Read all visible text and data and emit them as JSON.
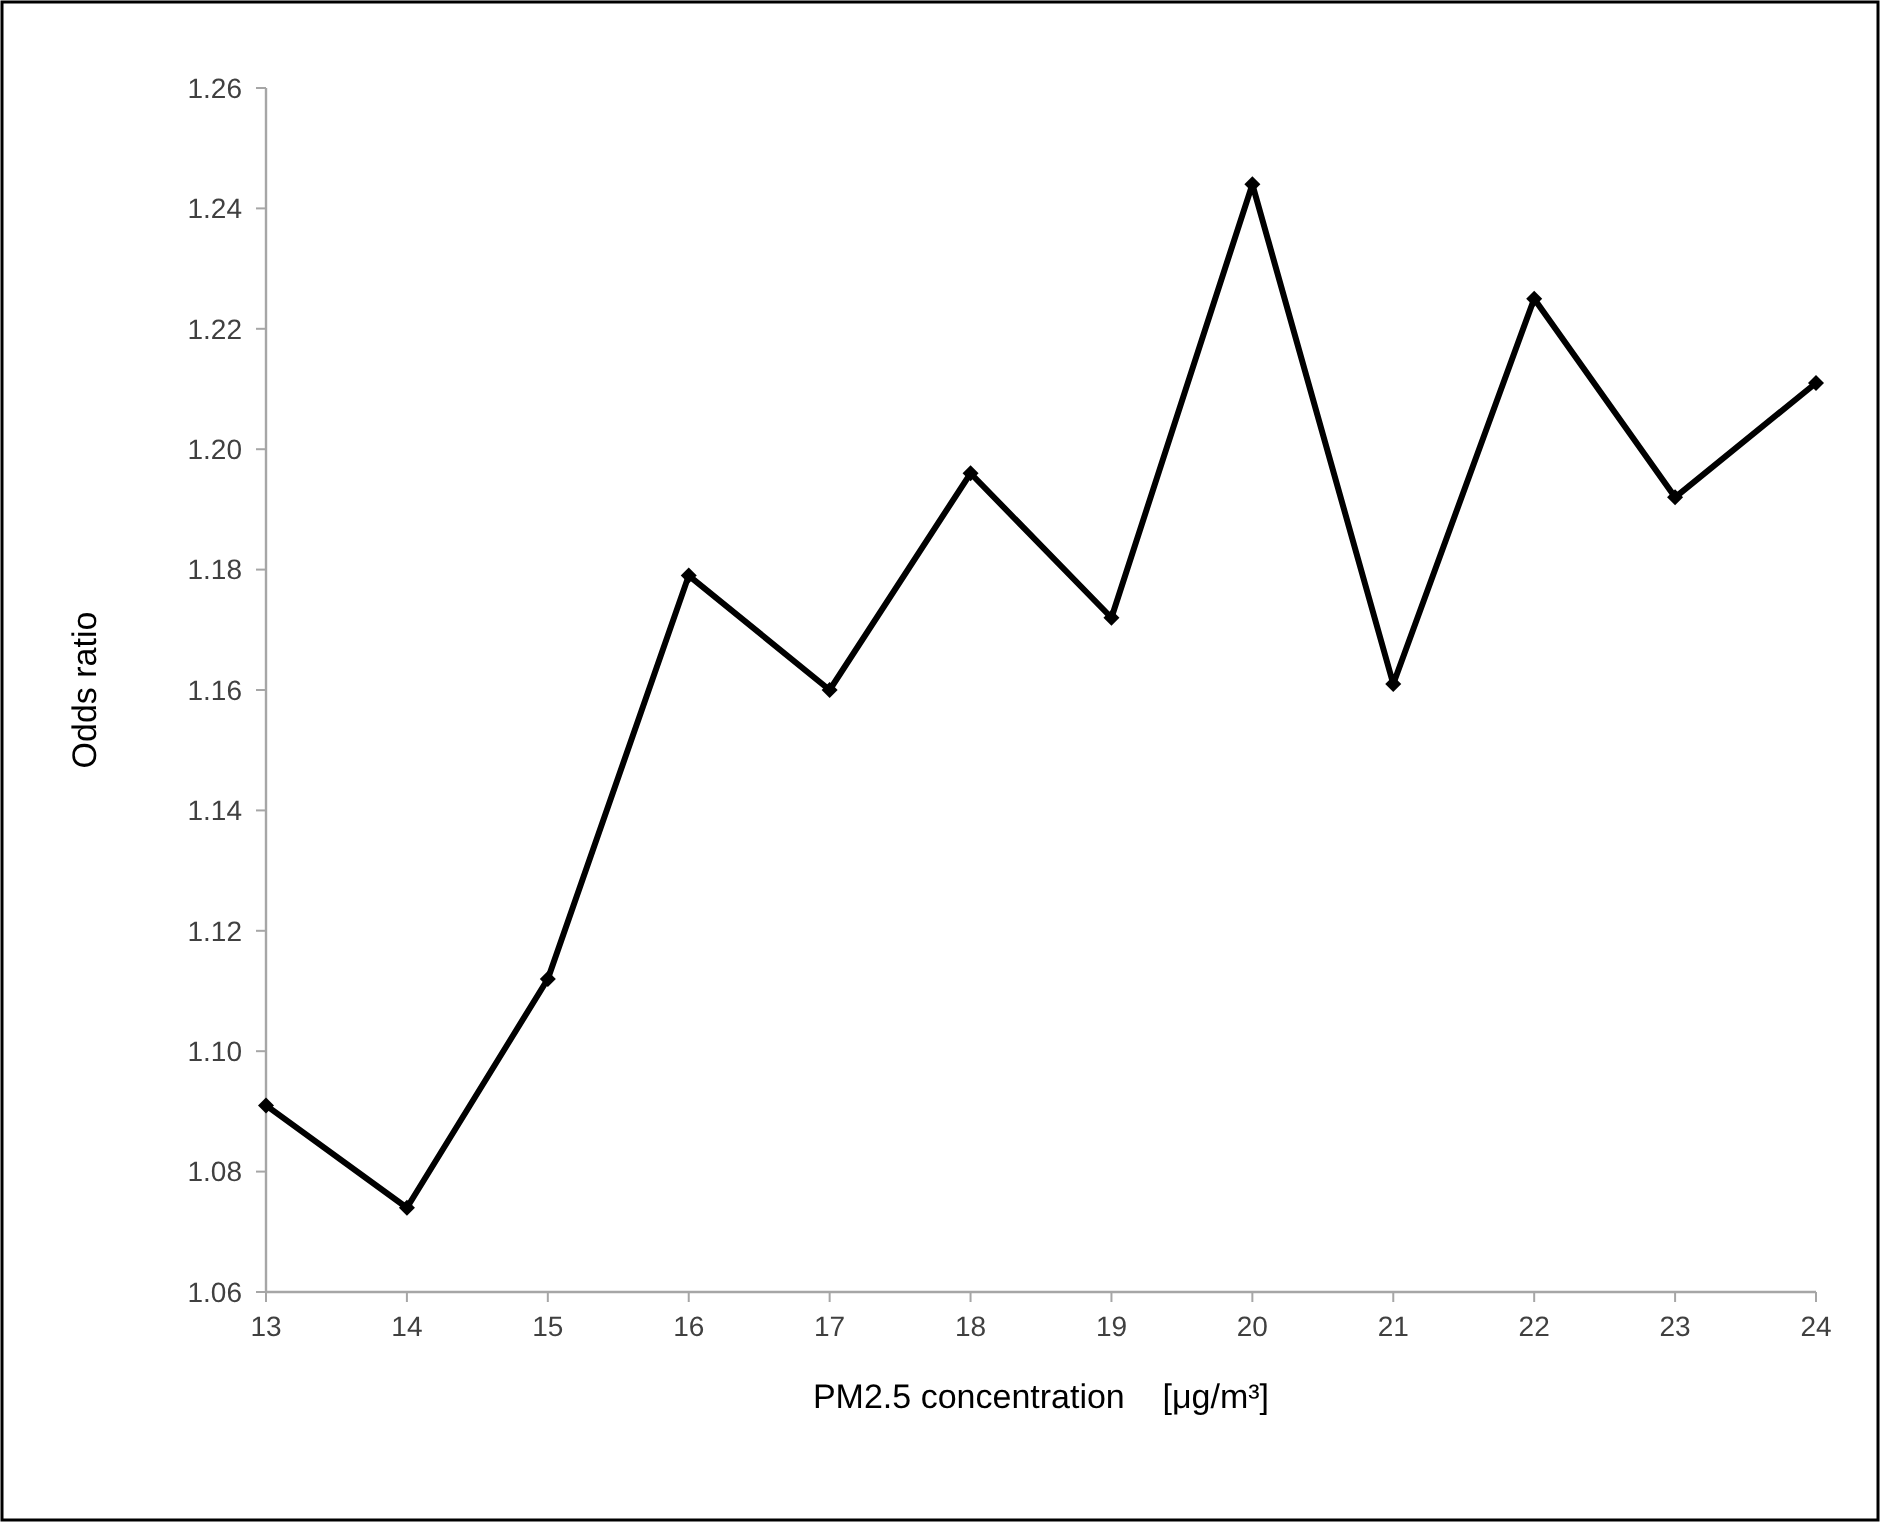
{
  "chart_data": {
    "type": "line",
    "xlabel": "PM2.5 concentration    [μg/m³]",
    "ylabel": "Odds ratio",
    "x": [
      13,
      14,
      15,
      16,
      17,
      18,
      19,
      20,
      21,
      22,
      23,
      24
    ],
    "series": [
      {
        "color": "#000000",
        "values": [
          1.091,
          1.074,
          1.112,
          1.179,
          1.16,
          1.196,
          1.172,
          1.244,
          1.161,
          1.225,
          1.192,
          1.211
        ]
      }
    ],
    "xlim": [
      13,
      24
    ],
    "xticks": [
      13,
      14,
      15,
      16,
      17,
      18,
      19,
      20,
      21,
      22,
      23,
      24
    ],
    "ylim": [
      1.06,
      1.26
    ],
    "yticks": [
      1.06,
      1.08,
      {
        "value": 1.1,
        "label": "1.10"
      },
      1.12,
      1.14,
      1.16,
      1.18,
      {
        "value": 1.2,
        "label": "1.20"
      },
      1.22,
      1.24,
      1.26
    ],
    "marker": "diamond",
    "line_style": "solid",
    "grid": false
  }
}
